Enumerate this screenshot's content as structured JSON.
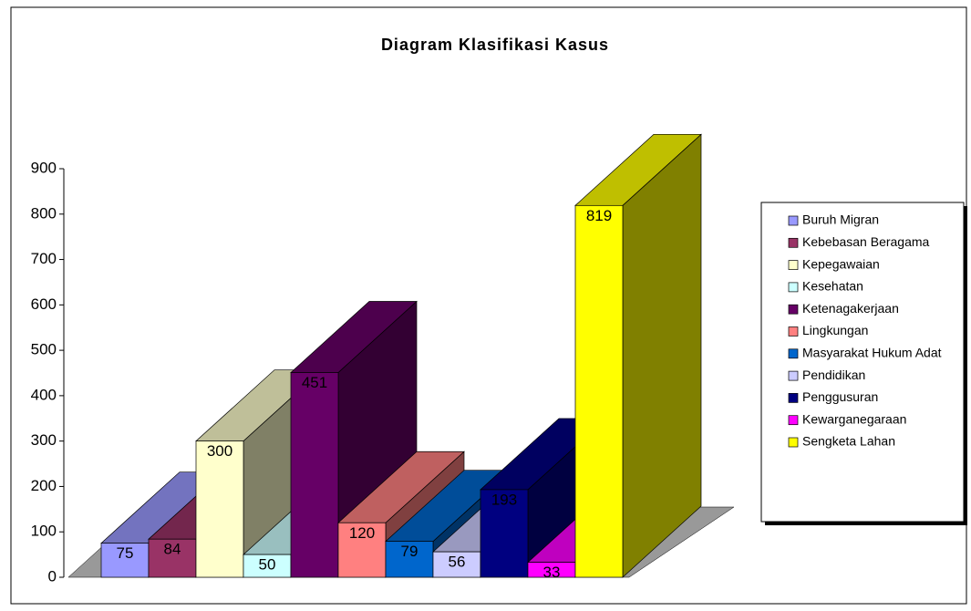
{
  "chart_data": {
    "type": "bar3d",
    "title": "Diagram Klasifikasi Kasus",
    "categories": [
      "Buruh Migran",
      "Kebebasan Beragama",
      "Kepegawaian",
      "Kesehatan",
      "Ketenagakerjaan",
      "Lingkungan",
      "Masyarakat Hukum Adat",
      "Pendidikan",
      "Penggusuran",
      "Kewarganegaraan",
      "Sengketa Lahan"
    ],
    "values": [
      75,
      84,
      300,
      50,
      451,
      120,
      79,
      56,
      193,
      33,
      819
    ],
    "colors": [
      "#9999ff",
      "#993366",
      "#ffffcc",
      "#ccffff",
      "#660066",
      "#ff8080",
      "#0066cc",
      "#ccccff",
      "#000080",
      "#ff00ff",
      "#ffff00"
    ],
    "ylim": [
      0,
      900
    ],
    "yticks": [
      0,
      100,
      200,
      300,
      400,
      500,
      600,
      700,
      800,
      900
    ],
    "legend": "right"
  }
}
